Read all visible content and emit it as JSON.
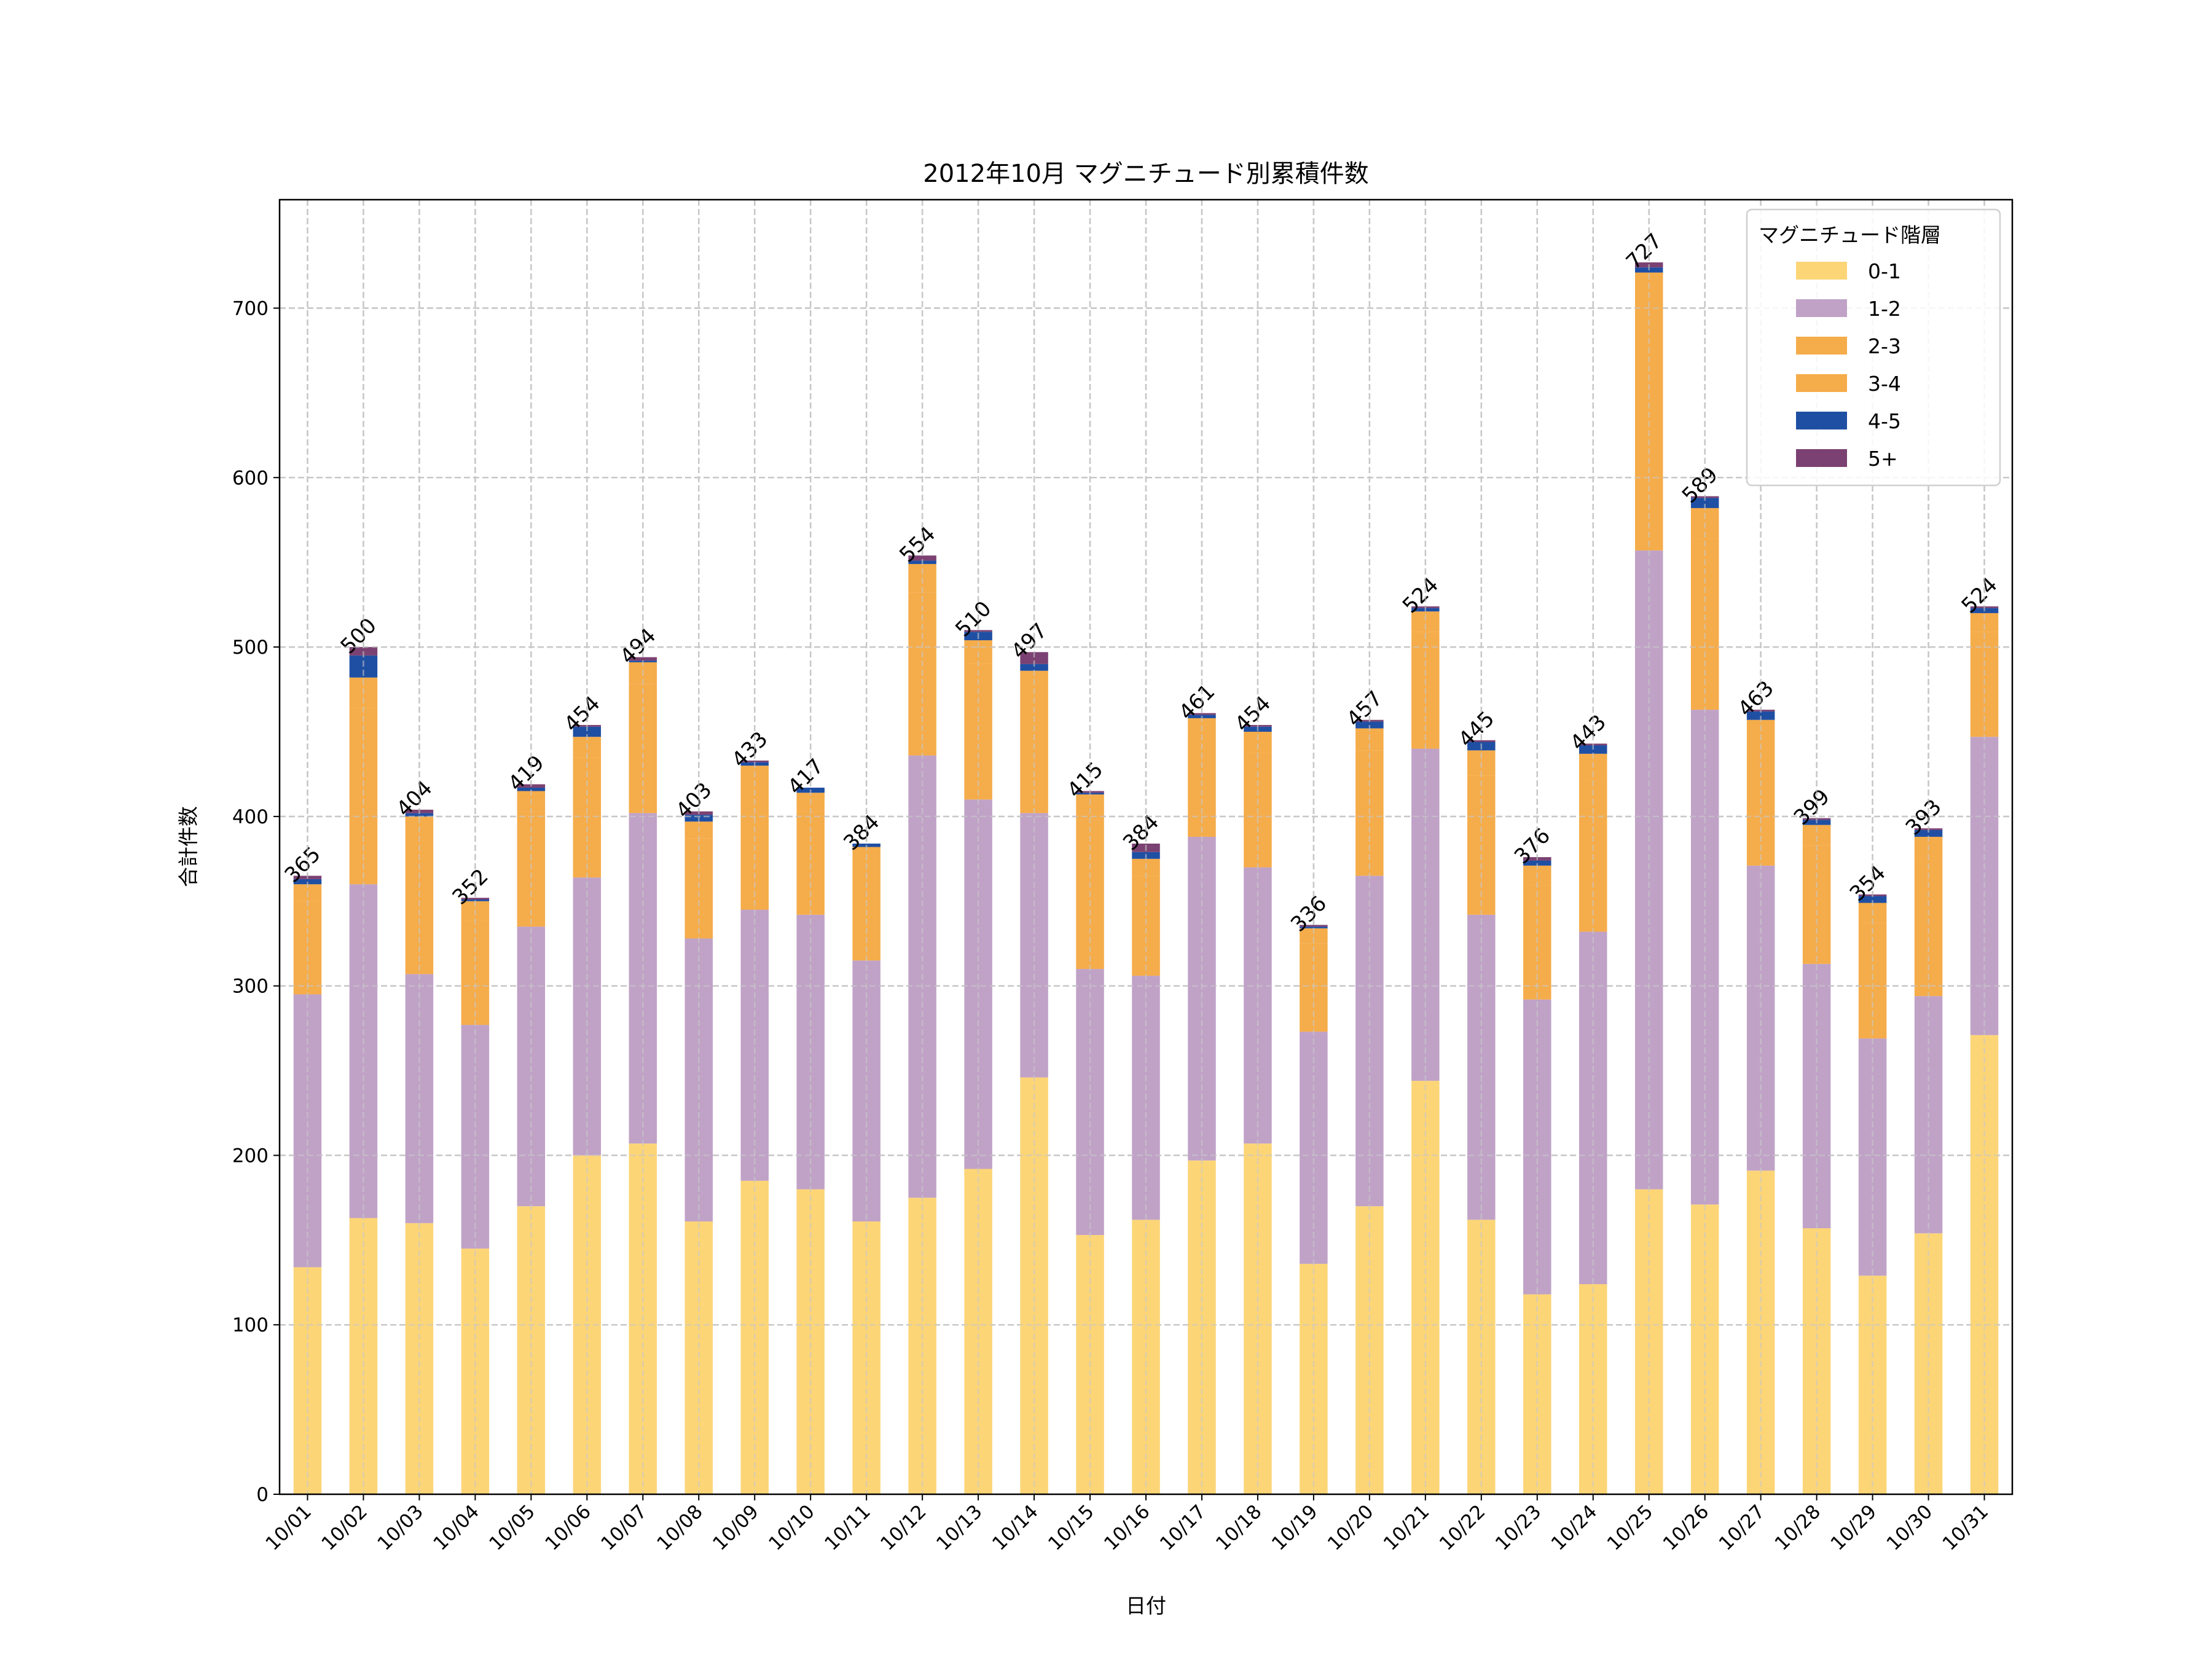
{
  "chart_data": {
    "type": "bar",
    "stacked": true,
    "title": "2012年10月 マグニチュード別累積件数",
    "xlabel": "日付",
    "ylabel": "合計件数",
    "ylim": [
      0,
      764
    ],
    "yticks": [
      0,
      100,
      200,
      300,
      400,
      500,
      600,
      700
    ],
    "grid": true,
    "legend": {
      "title": "マグニチュード階層",
      "placement": "top-right"
    },
    "categories": [
      "10/01",
      "10/02",
      "10/03",
      "10/04",
      "10/05",
      "10/06",
      "10/07",
      "10/08",
      "10/09",
      "10/10",
      "10/11",
      "10/12",
      "10/13",
      "10/14",
      "10/15",
      "10/16",
      "10/17",
      "10/18",
      "10/19",
      "10/20",
      "10/21",
      "10/22",
      "10/23",
      "10/24",
      "10/25",
      "10/26",
      "10/27",
      "10/28",
      "10/29",
      "10/30",
      "10/31"
    ],
    "series": [
      {
        "name": "0-1",
        "color": "#fcd577",
        "values": [
          134,
          163,
          160,
          145,
          170,
          200,
          207,
          161,
          185,
          180,
          161,
          175,
          192,
          246,
          153,
          162,
          197,
          207,
          136,
          170,
          244,
          162,
          118,
          124,
          180,
          171,
          191,
          157,
          129,
          154,
          271
        ]
      },
      {
        "name": "1-2",
        "color": "#c0a2c7",
        "values": [
          161,
          197,
          147,
          132,
          165,
          164,
          195,
          167,
          160,
          162,
          154,
          261,
          218,
          156,
          157,
          144,
          191,
          163,
          137,
          195,
          196,
          180,
          174,
          208,
          377,
          292,
          180,
          156,
          140,
          140,
          176
        ]
      },
      {
        "name": "2-3",
        "color": "#f5ac4a",
        "values": [
          55,
          104,
          79,
          62,
          68,
          71,
          76,
          59,
          72,
          61,
          57,
          96,
          80,
          71,
          88,
          59,
          60,
          68,
          52,
          74,
          69,
          82,
          67,
          89,
          139,
          101,
          73,
          70,
          68,
          80,
          62
        ]
      },
      {
        "name": "3-4",
        "color": "#f5ac4a",
        "values": [
          10,
          18,
          14,
          11,
          12,
          12,
          13,
          10,
          13,
          11,
          10,
          17,
          14,
          13,
          15,
          10,
          10,
          12,
          9,
          13,
          12,
          15,
          12,
          16,
          25,
          18,
          13,
          12,
          12,
          14,
          11
        ]
      },
      {
        "name": "4-5",
        "color": "#1f4fa3",
        "values": [
          3,
          13,
          2,
          1,
          2,
          6,
          1,
          4,
          2,
          3,
          2,
          2,
          5,
          4,
          1,
          4,
          2,
          3,
          1,
          4,
          2,
          5,
          3,
          5,
          3,
          6,
          5,
          3,
          4,
          4,
          3
        ]
      },
      {
        "name": "5+",
        "color": "#7b4172",
        "values": [
          2,
          5,
          2,
          1,
          2,
          1,
          2,
          2,
          1,
          0,
          0,
          3,
          1,
          7,
          1,
          5,
          1,
          1,
          1,
          1,
          1,
          1,
          2,
          1,
          3,
          1,
          1,
          1,
          1,
          1,
          1
        ]
      }
    ],
    "totals": [
      365,
      500,
      404,
      352,
      419,
      454,
      494,
      403,
      433,
      417,
      384,
      554,
      510,
      497,
      415,
      384,
      461,
      454,
      336,
      457,
      524,
      445,
      376,
      443,
      727,
      589,
      463,
      399,
      354,
      393,
      524
    ]
  }
}
